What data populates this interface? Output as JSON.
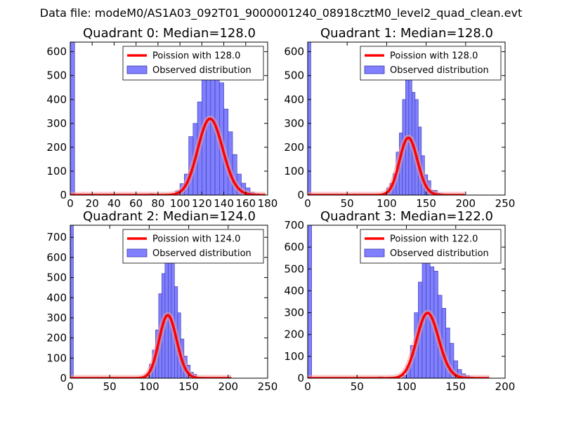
{
  "figure_title": "Data file: modeM0/AS1A03_092T01_9000001240_08918cztM0_level2_quad_clean.evt",
  "colors": {
    "bar_fill": "#7f7fff",
    "bar_edge": "#3a3aa8",
    "curve": "#ff0000",
    "curve_glow": "#f0a0a0"
  },
  "chart_data": [
    {
      "type": "bar",
      "title": "Quadrant 0: Median=128.0",
      "xlim": [
        0,
        180
      ],
      "ylim": [
        0,
        640
      ],
      "xticks": [
        0,
        20,
        40,
        60,
        80,
        100,
        120,
        140,
        160,
        180
      ],
      "yticks": [
        0,
        100,
        200,
        300,
        400,
        500,
        600
      ],
      "legend": {
        "curve_label": "Poission with 128.0",
        "bars_label": "Observed distribution",
        "loc": "upper right"
      },
      "bin_width": 4,
      "bins": [
        [
          0,
          640
        ],
        [
          68,
          4
        ],
        [
          72,
          6
        ],
        [
          76,
          4
        ],
        [
          80,
          2
        ],
        [
          88,
          3
        ],
        [
          92,
          6
        ],
        [
          96,
          18
        ],
        [
          100,
          48
        ],
        [
          104,
          88
        ],
        [
          108,
          245
        ],
        [
          112,
          300
        ],
        [
          116,
          390
        ],
        [
          120,
          500
        ],
        [
          124,
          520
        ],
        [
          128,
          590
        ],
        [
          132,
          590
        ],
        [
          136,
          470
        ],
        [
          140,
          360
        ],
        [
          144,
          265
        ],
        [
          148,
          170
        ],
        [
          152,
          88
        ],
        [
          156,
          50
        ],
        [
          160,
          30
        ],
        [
          164,
          12
        ],
        [
          168,
          6
        ],
        [
          172,
          2
        ]
      ],
      "curve": {
        "mean": 128.0,
        "scale": 1.9,
        "x_range": [
          0,
          178
        ]
      }
    },
    {
      "type": "bar",
      "title": "Quadrant 1: Median=128.0",
      "xlim": [
        0,
        250
      ],
      "ylim": [
        0,
        640
      ],
      "xticks": [
        0,
        50,
        100,
        150,
        200,
        250
      ],
      "yticks": [
        0,
        100,
        200,
        300,
        400,
        500,
        600
      ],
      "legend": {
        "curve_label": "Poission with 128.0",
        "bars_label": "Observed distribution",
        "loc": "upper right"
      },
      "bin_width": 4,
      "bins": [
        [
          0,
          640
        ],
        [
          80,
          2
        ],
        [
          92,
          4
        ],
        [
          96,
          8
        ],
        [
          100,
          30
        ],
        [
          104,
          50
        ],
        [
          108,
          90
        ],
        [
          112,
          180
        ],
        [
          116,
          260
        ],
        [
          120,
          400
        ],
        [
          124,
          520
        ],
        [
          128,
          555
        ],
        [
          132,
          430
        ],
        [
          136,
          400
        ],
        [
          140,
          285
        ],
        [
          144,
          165
        ],
        [
          148,
          85
        ],
        [
          152,
          60
        ],
        [
          156,
          20
        ],
        [
          160,
          20
        ],
        [
          164,
          8
        ],
        [
          168,
          6
        ]
      ],
      "curve": {
        "mean": 128.0,
        "scale": 1.9,
        "x_range": [
          0,
          199
        ]
      }
    },
    {
      "type": "bar",
      "title": "Quadrant 2: Median=124.0",
      "xlim": [
        0,
        250
      ],
      "ylim": [
        0,
        760
      ],
      "xticks": [
        0,
        50,
        100,
        150,
        200,
        250
      ],
      "yticks": [
        0,
        100,
        200,
        300,
        400,
        500,
        600,
        700
      ],
      "legend": {
        "curve_label": "Poission with 124.0",
        "bars_label": "Observed distribution",
        "loc": "upper right"
      },
      "bin_width": 4,
      "bins": [
        [
          0,
          760
        ],
        [
          96,
          20
        ],
        [
          100,
          70
        ],
        [
          104,
          140
        ],
        [
          108,
          240
        ],
        [
          112,
          420
        ],
        [
          116,
          520
        ],
        [
          120,
          720
        ],
        [
          124,
          660
        ],
        [
          128,
          600
        ],
        [
          132,
          455
        ],
        [
          136,
          325
        ],
        [
          140,
          195
        ],
        [
          144,
          110
        ],
        [
          148,
          65
        ],
        [
          152,
          30
        ],
        [
          156,
          20
        ],
        [
          160,
          6
        ],
        [
          164,
          2
        ]
      ],
      "curve": {
        "mean": 124.0,
        "scale": 1.9,
        "x_range": [
          0,
          204
        ]
      }
    },
    {
      "type": "bar",
      "title": "Quadrant 3: Median=122.0",
      "xlim": [
        0,
        200
      ],
      "ylim": [
        0,
        700
      ],
      "xticks": [
        0,
        50,
        100,
        150,
        200
      ],
      "yticks": [
        0,
        100,
        200,
        300,
        400,
        500,
        600,
        700
      ],
      "legend": {
        "curve_label": "Poission with 122.0",
        "bars_label": "Observed distribution",
        "loc": "upper right"
      },
      "bin_width": 4,
      "bins": [
        [
          0,
          700
        ],
        [
          72,
          6
        ],
        [
          88,
          2
        ],
        [
          96,
          14
        ],
        [
          100,
          55
        ],
        [
          104,
          150
        ],
        [
          108,
          300
        ],
        [
          112,
          440
        ],
        [
          116,
          530
        ],
        [
          120,
          600
        ],
        [
          124,
          510
        ],
        [
          128,
          490
        ],
        [
          132,
          380
        ],
        [
          136,
          320
        ],
        [
          140,
          230
        ],
        [
          144,
          160
        ],
        [
          148,
          80
        ],
        [
          152,
          40
        ],
        [
          156,
          20
        ],
        [
          160,
          12
        ],
        [
          164,
          6
        ],
        [
          168,
          2
        ]
      ],
      "curve": {
        "mean": 122.0,
        "scale": 1.9,
        "x_range": [
          0,
          184
        ]
      }
    }
  ]
}
